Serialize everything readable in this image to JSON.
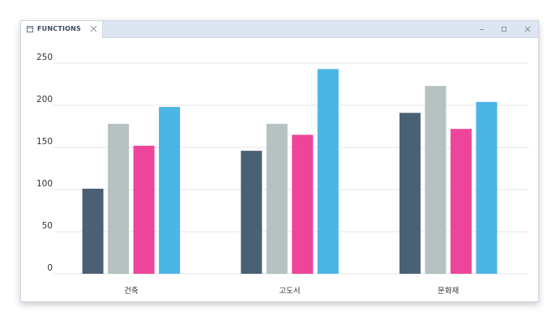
{
  "window": {
    "tab_title": "FUNCTIONS",
    "icons": {
      "tab": "window-icon",
      "tab_close": "close-icon",
      "minimize": "minimize-icon",
      "maximize": "maximize-icon",
      "close": "close-icon"
    }
  },
  "chart_data": {
    "type": "bar",
    "title": "",
    "xlabel": "",
    "ylabel": "",
    "categories": [
      "건축",
      "고도서",
      "문화재"
    ],
    "ylim": [
      0,
      250
    ],
    "yticks": [
      "0",
      "50",
      "100",
      "150",
      "200",
      "250"
    ],
    "grid": true,
    "series": [
      {
        "color": "#4a6075",
        "values": [
          101,
          146,
          191
        ]
      },
      {
        "color": "#b6c1c1",
        "values": [
          178,
          178,
          223
        ]
      },
      {
        "color": "#ee459a",
        "values": [
          152,
          165,
          172
        ]
      },
      {
        "color": "#4bb5e6",
        "values": [
          198,
          243,
          204
        ]
      }
    ]
  }
}
